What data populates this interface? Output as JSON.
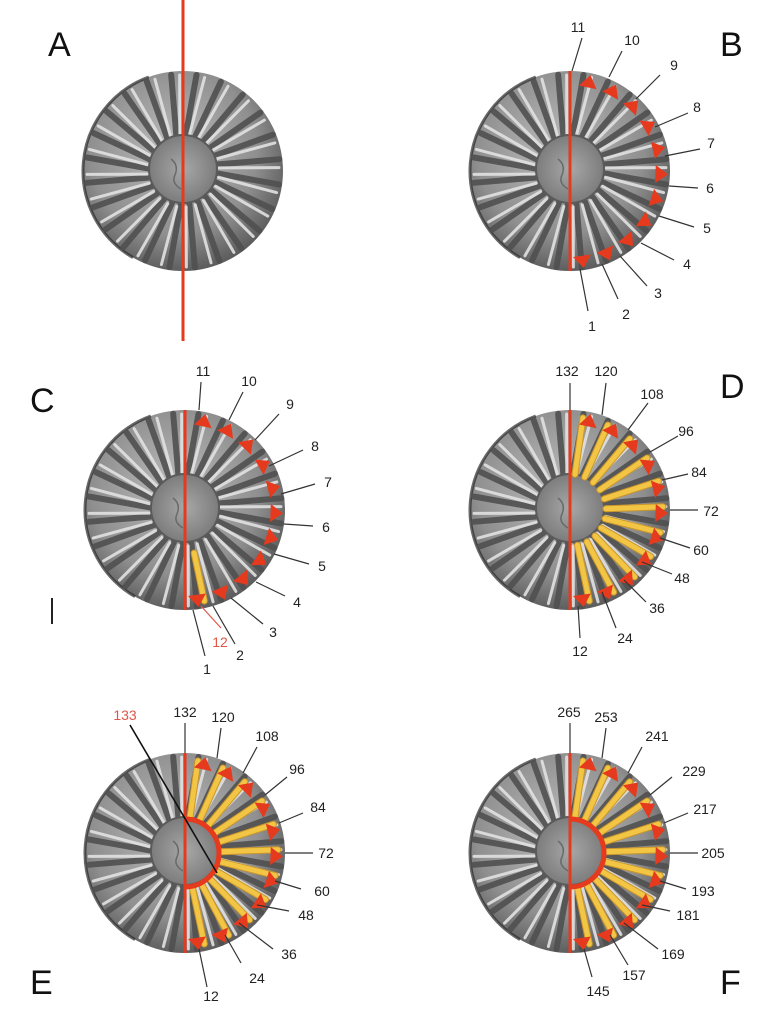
{
  "colors": {
    "red": "#e53a1e",
    "yellow": "#f3c545",
    "yellow_edge": "#c9962a",
    "highlight_text": "#e0574a",
    "leader": "#333333",
    "disc_light": "#c8c8c8",
    "disc_dark": "#505050"
  },
  "panels": [
    {
      "id": "A",
      "label": "A",
      "labels": []
    },
    {
      "id": "B",
      "label": "B",
      "labels": [
        "1",
        "2",
        "3",
        "4",
        "5",
        "6",
        "7",
        "8",
        "9",
        "10",
        "11"
      ]
    },
    {
      "id": "C",
      "label": "C",
      "labels": [
        "1",
        "2",
        "3",
        "4",
        "5",
        "6",
        "7",
        "8",
        "9",
        "10",
        "11"
      ],
      "highlight": "12"
    },
    {
      "id": "D",
      "label": "D",
      "labels": [
        "12",
        "24",
        "36",
        "48",
        "60",
        "72",
        "84",
        "96",
        "108",
        "120",
        "132"
      ]
    },
    {
      "id": "E",
      "label": "E",
      "labels": [
        "12",
        "24",
        "36",
        "48",
        "60",
        "72",
        "84",
        "96",
        "108",
        "120",
        "132"
      ],
      "highlight": "133"
    },
    {
      "id": "F",
      "label": "F",
      "labels": [
        "145",
        "157",
        "169",
        "181",
        "193",
        "205",
        "217",
        "229",
        "241",
        "253",
        "265"
      ]
    }
  ]
}
